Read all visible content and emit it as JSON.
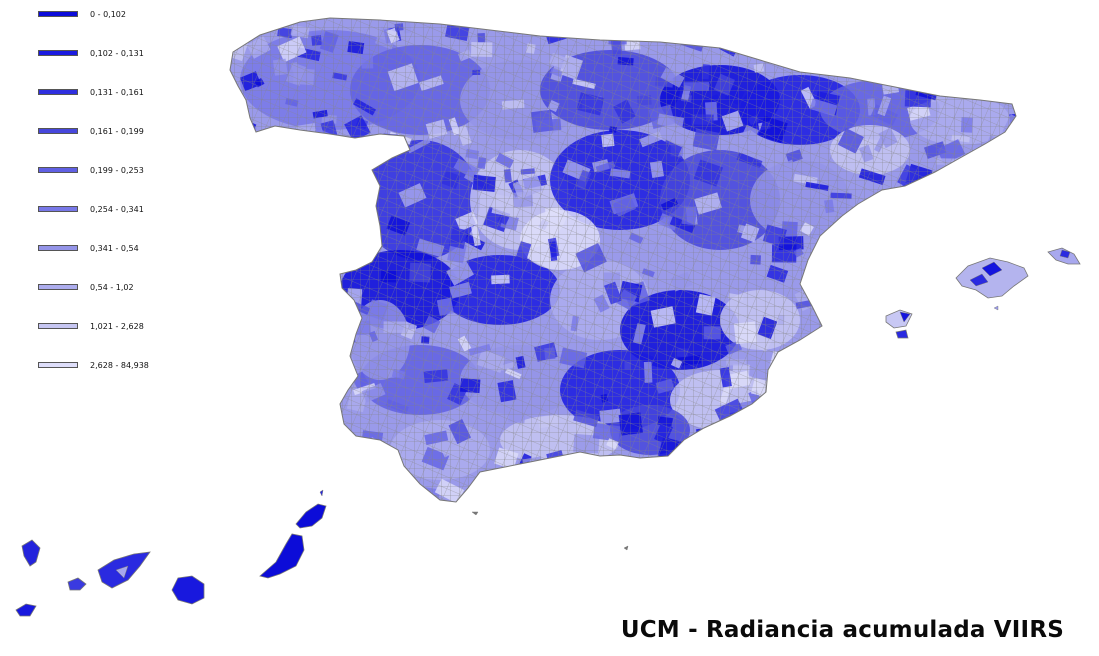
{
  "title": "UCM - Radiancia acumulada VIIRS",
  "legend": [
    {
      "label": "0 - 0,102",
      "color": "#0b0bd9"
    },
    {
      "label": "0,102 - 0,131",
      "color": "#1a1ae0"
    },
    {
      "label": "0,131 - 0,161",
      "color": "#2f2fdf"
    },
    {
      "label": "0,161 - 0,199",
      "color": "#4747dc"
    },
    {
      "label": "0,199 - 0,253",
      "color": "#6060e3"
    },
    {
      "label": "0,254 - 0,341",
      "color": "#7878e8"
    },
    {
      "label": "0,341 - 0,54",
      "color": "#9494e8"
    },
    {
      "label": "0,54 - 1,02",
      "color": "#adadee"
    },
    {
      "label": "1,021 - 2,628",
      "color": "#c6c6f2"
    },
    {
      "label": "2,628 - 84,938",
      "color": "#dedefa"
    }
  ],
  "colors": {
    "border": "#808080",
    "background": "#ffffff"
  }
}
